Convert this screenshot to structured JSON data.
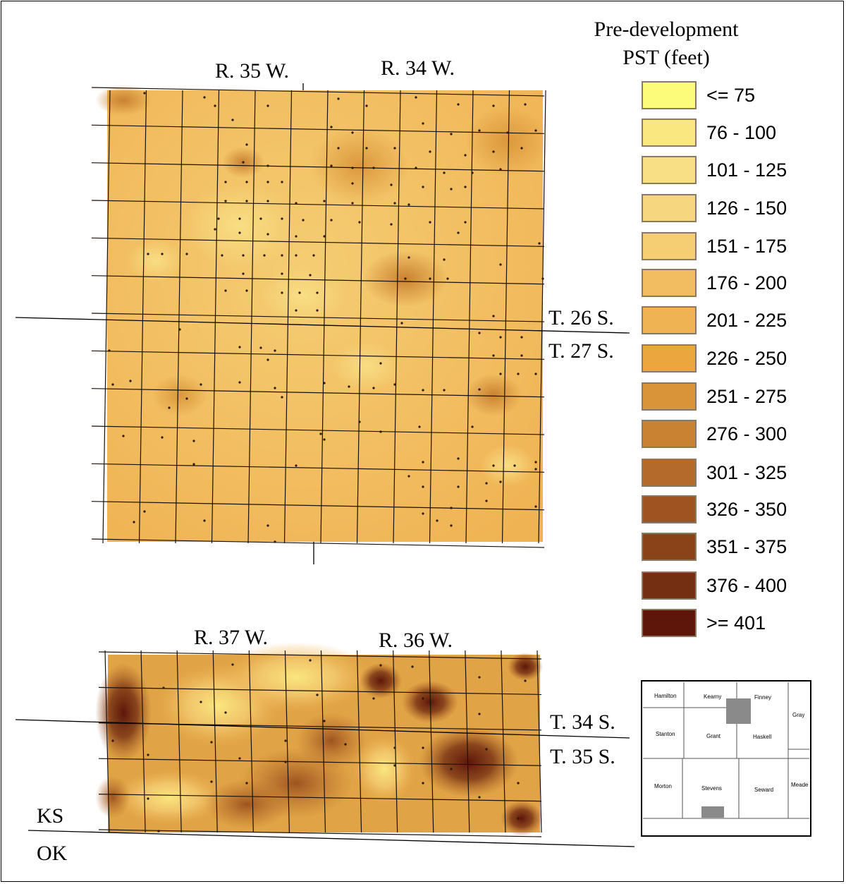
{
  "legend": {
    "title_line1": "Pre-development",
    "title_line2": "PST (feet)",
    "classes": [
      {
        "label": "<= 75",
        "color": "#fdfc7a"
      },
      {
        "label": "76 - 100",
        "color": "#fae77f"
      },
      {
        "label": "101 - 125",
        "color": "#f8de84"
      },
      {
        "label": "126 - 150",
        "color": "#f7d680"
      },
      {
        "label": "151 - 175",
        "color": "#f5cd73"
      },
      {
        "label": "176 - 200",
        "color": "#f2bd60"
      },
      {
        "label": "201 - 225",
        "color": "#efb353"
      },
      {
        "label": "226 - 250",
        "color": "#eca63e"
      },
      {
        "label": "251 - 275",
        "color": "#d99338"
      },
      {
        "label": "276 - 300",
        "color": "#c98231"
      },
      {
        "label": "301 - 325",
        "color": "#b46a2a"
      },
      {
        "label": "326 - 350",
        "color": "#9e5320"
      },
      {
        "label": "351 - 375",
        "color": "#8a4219"
      },
      {
        "label": "376 - 400",
        "color": "#742e12"
      },
      {
        "label": ">= 401",
        "color": "#5e160a"
      }
    ]
  },
  "north_map": {
    "range_labels": [
      "R. 35 W.",
      "R. 34 W."
    ],
    "township_labels": [
      "T. 26 S.",
      "T. 27 S."
    ]
  },
  "south_map": {
    "range_labels": [
      "R. 37 W.",
      "R. 36 W."
    ],
    "township_labels": [
      "T. 34 S.",
      "T. 35 S."
    ],
    "state_labels": [
      "KS",
      "OK"
    ]
  },
  "locator_map": {
    "counties": [
      "Hamilton",
      "Kearny",
      "Finney",
      "Gray",
      "Stanton",
      "Grant",
      "Haskell",
      "Morton",
      "Stevens",
      "Seward",
      "Meade"
    ]
  }
}
